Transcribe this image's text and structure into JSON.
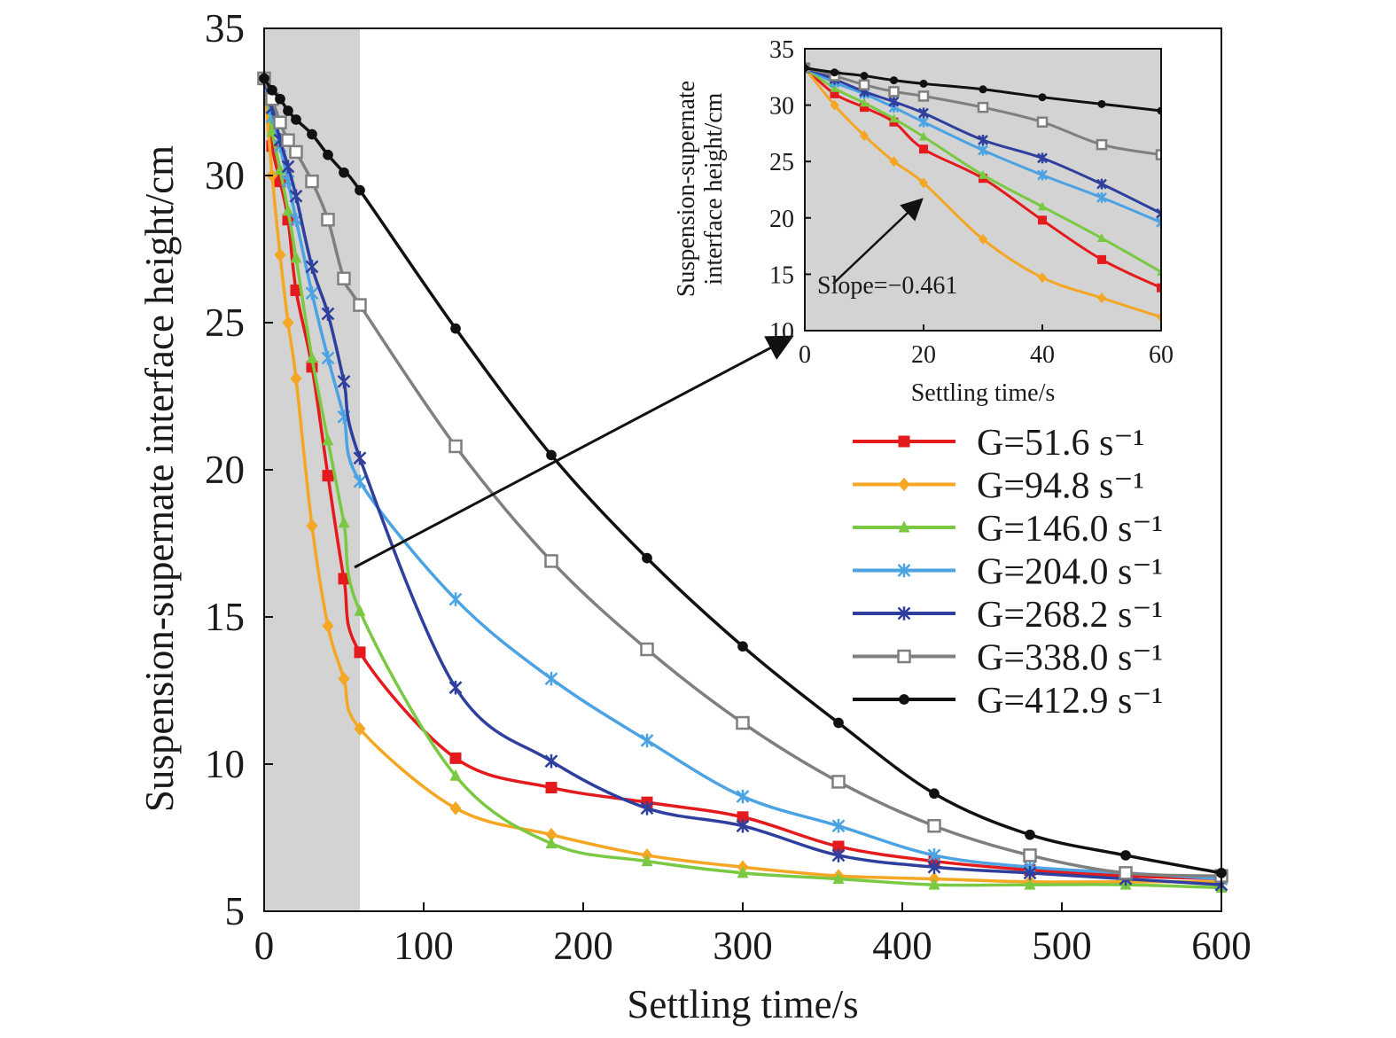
{
  "chart_data": [
    {
      "type": "line",
      "title": "",
      "xlabel": "Settling time/s",
      "ylabel": "Suspension-supernate interface height/cm",
      "xlim": [
        0,
        600
      ],
      "ylim": [
        5,
        35
      ],
      "xticks": [
        0,
        100,
        200,
        300,
        400,
        500,
        600
      ],
      "yticks": [
        5,
        10,
        15,
        20,
        25,
        30,
        35
      ],
      "highlight_region_x": [
        0,
        60
      ],
      "highlight_color": "#d3d3d3",
      "legend_position": "center-right",
      "series": [
        {
          "name": "G=51.6 s⁻¹",
          "color": "#e41a1c",
          "marker": "filled-square",
          "x": [
            0,
            5,
            10,
            15,
            20,
            30,
            40,
            50,
            60,
            120,
            180,
            240,
            300,
            360,
            420,
            480,
            540,
            600
          ],
          "y": [
            33.3,
            31.0,
            29.8,
            28.5,
            26.1,
            23.5,
            19.8,
            16.3,
            13.8,
            10.2,
            9.2,
            8.7,
            8.2,
            7.2,
            6.7,
            6.4,
            6.2,
            6.1
          ]
        },
        {
          "name": "G=94.8 s⁻¹",
          "color": "#f5a623",
          "marker": "filled-diamond",
          "x": [
            0,
            5,
            10,
            15,
            20,
            30,
            40,
            50,
            60,
            120,
            180,
            240,
            300,
            360,
            420,
            480,
            540,
            600
          ],
          "y": [
            33.3,
            30.0,
            27.3,
            25.0,
            23.1,
            18.1,
            14.7,
            12.9,
            11.2,
            8.5,
            7.6,
            6.9,
            6.5,
            6.2,
            6.1,
            6.0,
            6.0,
            6.0
          ]
        },
        {
          "name": "G=146.0 s⁻¹",
          "color": "#7ac943",
          "marker": "filled-triangle",
          "x": [
            0,
            5,
            10,
            15,
            20,
            30,
            40,
            50,
            60,
            120,
            180,
            240,
            300,
            360,
            420,
            480,
            540,
            600
          ],
          "y": [
            33.3,
            31.5,
            30.2,
            28.8,
            27.2,
            23.8,
            21.0,
            18.2,
            15.2,
            9.6,
            7.3,
            6.7,
            6.3,
            6.1,
            5.9,
            5.9,
            5.9,
            5.8
          ]
        },
        {
          "name": "G=204.0 s⁻¹",
          "color": "#4ba3e3",
          "marker": "asterisk",
          "x": [
            0,
            5,
            10,
            15,
            20,
            30,
            40,
            50,
            60,
            120,
            180,
            240,
            300,
            360,
            420,
            480,
            540,
            600
          ],
          "y": [
            33.3,
            32.0,
            31.0,
            29.8,
            28.5,
            26.0,
            23.8,
            21.8,
            19.6,
            15.6,
            12.9,
            10.8,
            8.9,
            7.9,
            6.9,
            6.5,
            6.3,
            6.1
          ]
        },
        {
          "name": "G=268.2 s⁻¹",
          "color": "#2e3f9e",
          "marker": "asterisk",
          "x": [
            0,
            5,
            10,
            15,
            20,
            30,
            40,
            50,
            60,
            120,
            180,
            240,
            300,
            360,
            420,
            480,
            540,
            600
          ],
          "y": [
            33.3,
            32.3,
            31.2,
            30.3,
            29.3,
            26.9,
            25.3,
            23.0,
            20.4,
            12.6,
            10.1,
            8.5,
            7.9,
            6.9,
            6.5,
            6.3,
            6.1,
            5.9
          ]
        },
        {
          "name": "G=338.0 s⁻¹",
          "color": "#7f7f7f",
          "marker": "open-square",
          "x": [
            0,
            5,
            10,
            15,
            20,
            30,
            40,
            50,
            60,
            120,
            180,
            240,
            300,
            360,
            420,
            480,
            540,
            600
          ],
          "y": [
            33.3,
            32.6,
            31.8,
            31.2,
            30.8,
            29.8,
            28.5,
            26.5,
            25.6,
            20.8,
            16.9,
            13.9,
            11.4,
            9.4,
            7.9,
            6.9,
            6.3,
            6.2
          ]
        },
        {
          "name": "G=412.9 s⁻¹",
          "color": "#111111",
          "marker": "filled-dot",
          "x": [
            0,
            5,
            10,
            15,
            20,
            30,
            40,
            50,
            60,
            120,
            180,
            240,
            300,
            360,
            420,
            480,
            540,
            600
          ],
          "y": [
            33.3,
            32.9,
            32.6,
            32.2,
            31.9,
            31.4,
            30.7,
            30.1,
            29.5,
            24.8,
            20.5,
            17.0,
            14.0,
            11.4,
            9.0,
            7.6,
            6.9,
            6.3
          ]
        }
      ]
    },
    {
      "type": "line",
      "title": "",
      "xlabel": "Settling time/s",
      "ylabel_line1": "Suspension-supernate",
      "ylabel_line2": "interface height/cm",
      "xlim": [
        0,
        60
      ],
      "ylim": [
        10,
        35
      ],
      "xticks": [
        0,
        20,
        40,
        60
      ],
      "yticks": [
        10,
        15,
        20,
        25,
        30,
        35
      ],
      "background": "#d3d3d3",
      "annotation": "Slope=−0.461",
      "series_from_main": true,
      "series_x_max": 60
    }
  ]
}
